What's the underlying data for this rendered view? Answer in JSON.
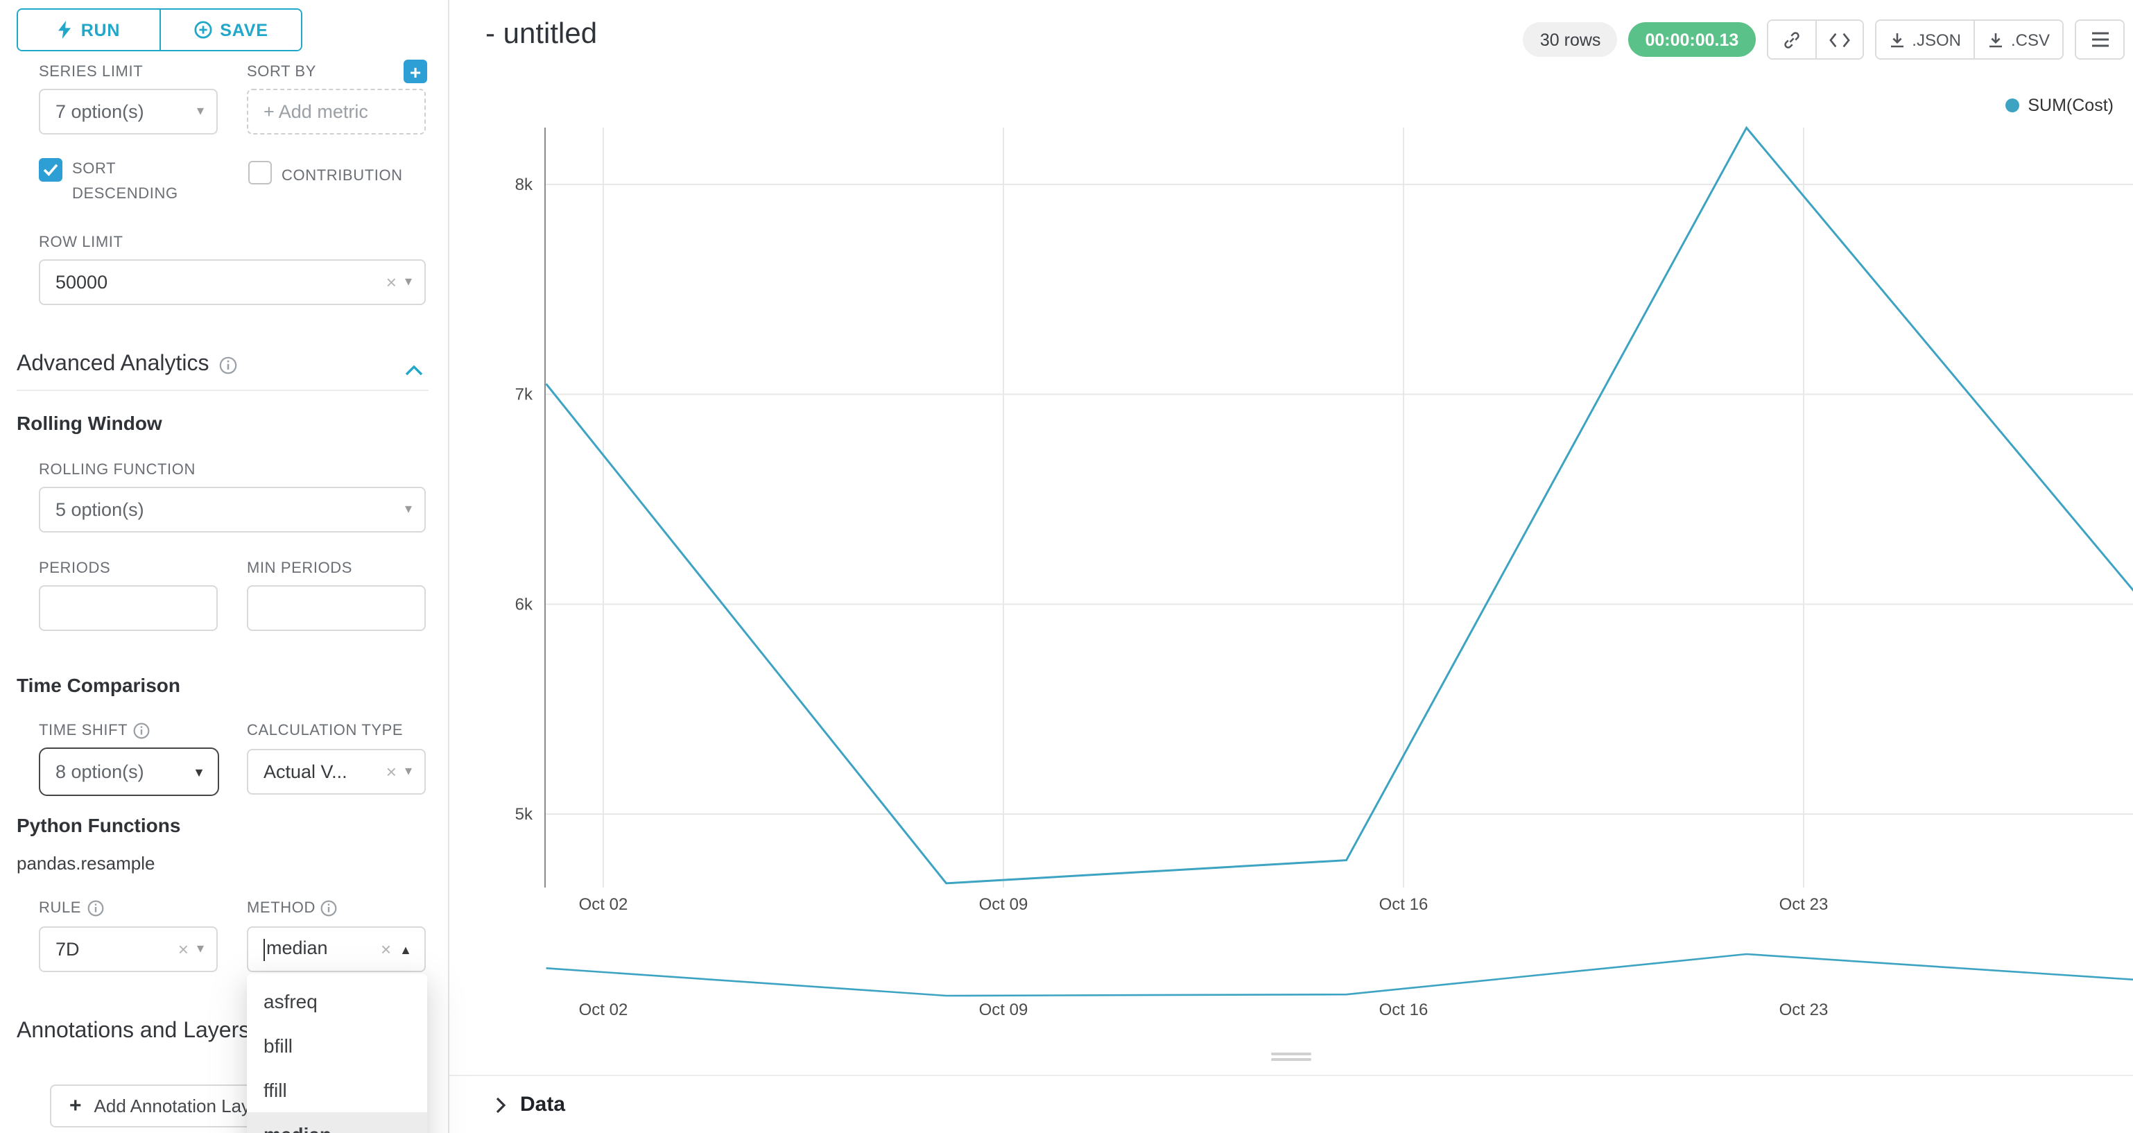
{
  "toolbar": {
    "run_label": "RUN",
    "save_label": "SAVE"
  },
  "sidebar": {
    "series_limit": {
      "label": "SERIES LIMIT",
      "value": "7 option(s)"
    },
    "sort_by": {
      "label": "SORT BY",
      "placeholder": "+ Add metric"
    },
    "sort_descending": {
      "label": "SORT DESCENDING",
      "checked": true
    },
    "contribution": {
      "label": "CONTRIBUTION",
      "checked": false
    },
    "row_limit": {
      "label": "ROW LIMIT",
      "value": "50000"
    },
    "advanced_analytics_title": "Advanced Analytics",
    "rolling_window_title": "Rolling Window",
    "rolling_function": {
      "label": "ROLLING FUNCTION",
      "value": "5 option(s)"
    },
    "periods": {
      "label": "PERIODS",
      "value": ""
    },
    "min_periods": {
      "label": "MIN PERIODS",
      "value": ""
    },
    "time_comparison_title": "Time Comparison",
    "time_shift": {
      "label": "TIME SHIFT",
      "value": "8 option(s)"
    },
    "calculation_type": {
      "label": "CALCULATION TYPE",
      "value": "Actual V..."
    },
    "python_functions_title": "Python Functions",
    "python_functions_subtitle": "pandas.resample",
    "rule": {
      "label": "RULE",
      "value": "7D"
    },
    "method": {
      "label": "METHOD",
      "value": "median",
      "options": [
        "asfreq",
        "bfill",
        "ffill",
        "median"
      ],
      "selected_option": "median"
    },
    "annotations_title": "Annotations and Layers",
    "add_annotation_label": "Add Annotation Layer"
  },
  "header": {
    "title": "- untitled",
    "rows_badge": "30 rows",
    "timer": "00:00:00.13",
    "export_json_label": ".JSON",
    "export_csv_label": ".CSV"
  },
  "data_panel": {
    "title": "Data"
  },
  "chart_data": {
    "type": "line",
    "legend_position": "top-right",
    "grid": true,
    "color": "#3DA3C3",
    "x_ticks": [
      {
        "label": "Oct 02",
        "day": 0
      },
      {
        "label": "Oct 09",
        "day": 7
      },
      {
        "label": "Oct 16",
        "day": 14
      },
      {
        "label": "Oct 23",
        "day": 21
      }
    ],
    "y_ticks": [
      {
        "label": "5k",
        "value": 5000
      },
      {
        "label": "6k",
        "value": 6000
      },
      {
        "label": "7k",
        "value": 7000
      },
      {
        "label": "8k",
        "value": 8000
      }
    ],
    "series": [
      {
        "name": "SUM(Cost)",
        "points": [
          {
            "x": "Oct 01",
            "day": -1,
            "y": 7050
          },
          {
            "x": "Oct 08",
            "day": 6,
            "y": 4670
          },
          {
            "x": "Oct 15",
            "day": 13,
            "y": 4780
          },
          {
            "x": "Oct 22",
            "day": 20,
            "y": 8270
          },
          {
            "x": "Oct 29",
            "day": 27,
            "y": 5990
          }
        ]
      }
    ],
    "mini_map": true
  },
  "colors": {
    "primary": "#20A7C9",
    "accent_blue": "#2E9FD4",
    "success_green": "#5AC189",
    "line": "#3DA3C3"
  }
}
